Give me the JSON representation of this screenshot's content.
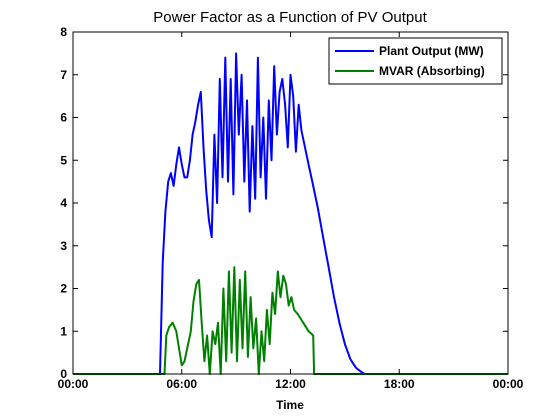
{
  "chart_data": {
    "type": "line",
    "title": "Power Factor as a Function of PV Output",
    "xlabel": "Time",
    "ylabel": "",
    "xlim": [
      0,
      24
    ],
    "ylim": [
      0,
      8
    ],
    "x_ticks": [
      0,
      6,
      12,
      18,
      24
    ],
    "x_tick_labels": [
      "00:00",
      "06:00",
      "12:00",
      "18:00",
      "00:00"
    ],
    "y_ticks": [
      0,
      1,
      2,
      3,
      4,
      5,
      6,
      7,
      8
    ],
    "y_tick_labels": [
      "0",
      "1",
      "2",
      "3",
      "4",
      "5",
      "6",
      "7",
      "8"
    ],
    "grid": false,
    "legend_position": "top-right",
    "series": [
      {
        "name": "Plant Output (MW)",
        "color": "#0000ff",
        "x": [
          0,
          4.8,
          4.95,
          5.1,
          5.25,
          5.4,
          5.55,
          5.7,
          5.85,
          6.0,
          6.15,
          6.3,
          6.45,
          6.6,
          6.75,
          6.9,
          7.05,
          7.2,
          7.35,
          7.5,
          7.65,
          7.8,
          7.95,
          8.1,
          8.25,
          8.4,
          8.55,
          8.7,
          8.85,
          9.0,
          9.15,
          9.3,
          9.45,
          9.6,
          9.75,
          9.9,
          10.05,
          10.2,
          10.35,
          10.5,
          10.65,
          10.8,
          10.95,
          11.1,
          11.25,
          11.4,
          11.55,
          11.7,
          11.85,
          12.0,
          12.15,
          12.3,
          12.45,
          12.6,
          12.75,
          12.9,
          13.05,
          13.2,
          13.5,
          13.8,
          14.1,
          14.4,
          14.7,
          15.0,
          15.3,
          15.6,
          15.9,
          16.1,
          16.3,
          18.0,
          24.0
        ],
        "values": [
          0,
          0,
          2.6,
          3.8,
          4.5,
          4.7,
          4.4,
          4.9,
          5.3,
          4.9,
          4.6,
          4.6,
          5.0,
          5.6,
          5.9,
          6.3,
          6.6,
          5.3,
          4.3,
          3.6,
          3.2,
          5.6,
          4.0,
          6.9,
          4.6,
          7.4,
          4.5,
          6.9,
          4.2,
          7.5,
          5.6,
          7.0,
          4.5,
          6.4,
          3.8,
          5.8,
          4.1,
          7.4,
          4.6,
          6.0,
          4.1,
          6.4,
          5.0,
          7.2,
          5.6,
          6.6,
          6.9,
          6.3,
          5.3,
          7.0,
          6.5,
          5.2,
          6.3,
          5.7,
          5.4,
          5.1,
          4.8,
          4.5,
          3.9,
          3.2,
          2.5,
          1.8,
          1.2,
          0.7,
          0.35,
          0.15,
          0.05,
          0,
          0,
          0,
          0
        ]
      },
      {
        "name": "MVAR (Absorbing)",
        "color": "#008000",
        "x": [
          0,
          5.05,
          5.15,
          5.3,
          5.5,
          5.7,
          5.85,
          6.0,
          6.15,
          6.3,
          6.5,
          6.65,
          6.8,
          6.95,
          7.1,
          7.25,
          7.4,
          7.55,
          7.7,
          7.85,
          8.0,
          8.15,
          8.3,
          8.45,
          8.6,
          8.75,
          8.9,
          9.05,
          9.2,
          9.35,
          9.5,
          9.65,
          9.8,
          9.95,
          10.1,
          10.25,
          10.4,
          10.55,
          10.7,
          10.85,
          11.0,
          11.15,
          11.3,
          11.45,
          11.6,
          11.75,
          11.9,
          12.05,
          12.2,
          12.4,
          12.7,
          13.0,
          13.25,
          13.3,
          24.0
        ],
        "values": [
          0,
          0,
          0.9,
          1.1,
          1.2,
          1.0,
          0.6,
          0.2,
          0.3,
          0.6,
          1.0,
          1.7,
          2.1,
          2.2,
          1.2,
          0.3,
          0.9,
          0.0,
          1.0,
          0.7,
          1.2,
          0.0,
          2.0,
          0.3,
          2.4,
          0.5,
          2.5,
          0.3,
          2.2,
          0.6,
          2.4,
          0.4,
          1.8,
          0.6,
          1.3,
          0.0,
          1.0,
          0.3,
          1.5,
          0.7,
          1.9,
          1.4,
          2.4,
          1.8,
          2.3,
          2.1,
          1.6,
          1.8,
          1.5,
          1.4,
          1.2,
          1.0,
          0.9,
          0,
          0
        ]
      }
    ]
  }
}
